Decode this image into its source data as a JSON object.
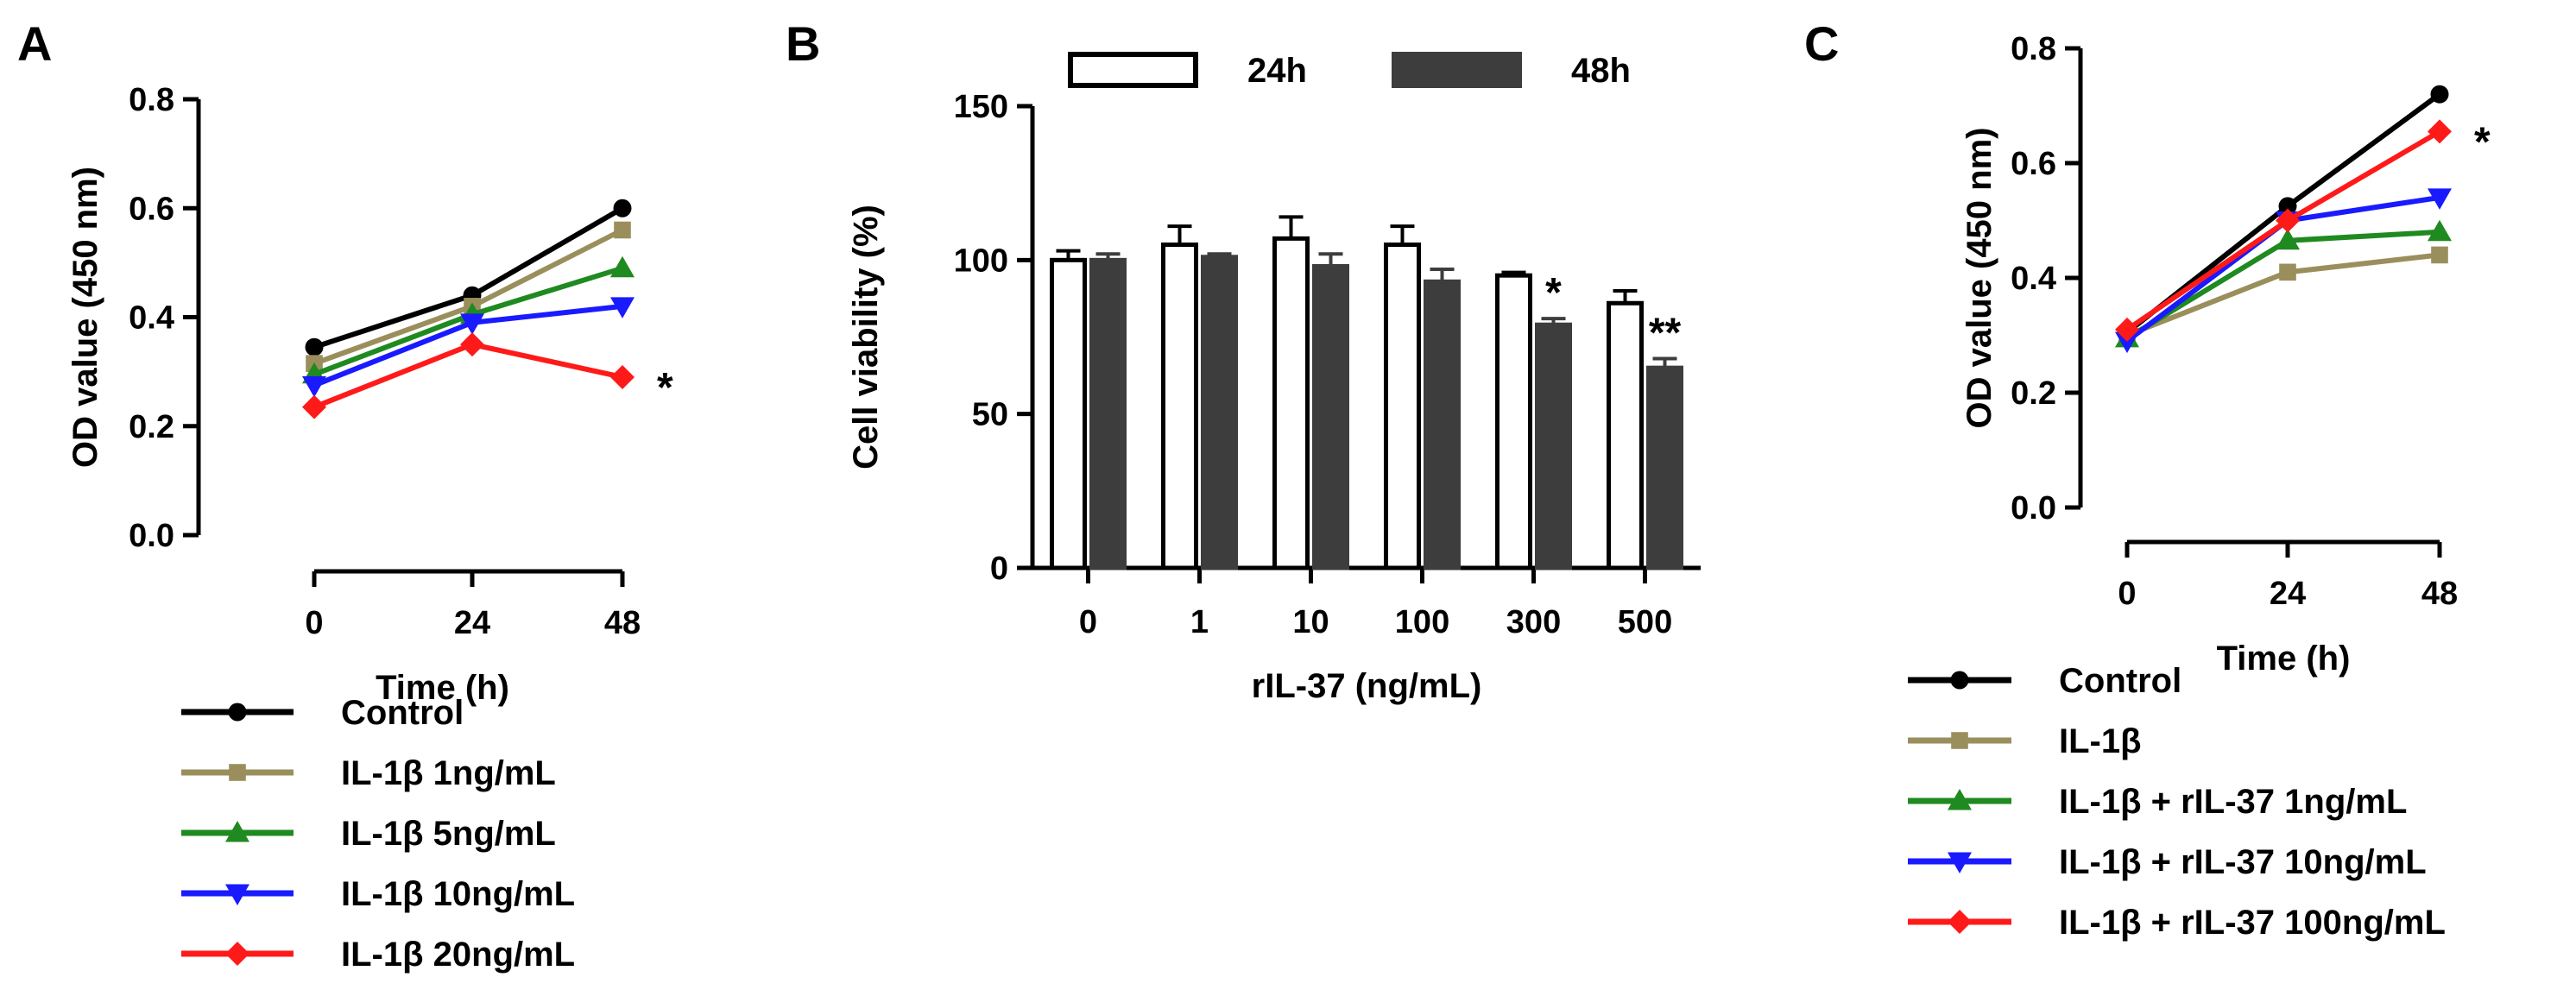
{
  "chart_data": [
    {
      "panel": "A",
      "type": "line",
      "x": [
        0,
        24,
        48
      ],
      "xticks": [
        "0",
        "24",
        "48"
      ],
      "xlabel": "Time (h)",
      "ylabel": "OD value (450 nm)",
      "ylim": [
        0,
        0.8
      ],
      "yticks": [
        "0.0",
        "0.2",
        "0.4",
        "0.6",
        "0.8"
      ],
      "series": [
        {
          "name": "Control",
          "values": [
            0.345,
            0.44,
            0.6
          ],
          "color": "#000000",
          "marker": "circle"
        },
        {
          "name": "IL-1β 1ng/mL",
          "values": [
            0.315,
            0.42,
            0.56
          ],
          "color": "#9a8f5c",
          "marker": "square"
        },
        {
          "name": "IL-1β 5ng/mL",
          "values": [
            0.295,
            0.405,
            0.49
          ],
          "color": "#1f8a1f",
          "marker": "triangle-up"
        },
        {
          "name": "IL-1β 10ng/mL",
          "values": [
            0.275,
            0.39,
            0.42
          ],
          "color": "#1a1aff",
          "marker": "triangle-down"
        },
        {
          "name": "IL-1β 20ng/mL",
          "values": [
            0.235,
            0.35,
            0.29
          ],
          "color": "#ff1a1a",
          "marker": "diamond"
        }
      ],
      "annotations": [
        {
          "text": "*",
          "series": 4,
          "x": 48
        }
      ]
    },
    {
      "panel": "B",
      "type": "bar",
      "categories": [
        "0",
        "1",
        "10",
        "100",
        "300",
        "500"
      ],
      "xlabel": "rIL-37 (ng/mL)",
      "ylabel": "Cell viability (%)",
      "ylim": [
        0,
        150
      ],
      "yticks": [
        "0",
        "50",
        "100",
        "150"
      ],
      "legend_position": "top",
      "series": [
        {
          "name": "24h",
          "values": [
            100,
            105,
            107,
            105,
            95,
            86
          ],
          "errors": [
            3,
            6,
            7,
            6,
            1,
            4
          ],
          "fill": "#ffffff",
          "stroke": "#000000"
        },
        {
          "name": "48h",
          "values": [
            100,
            101,
            98,
            93,
            79,
            65
          ],
          "errors": [
            2,
            1,
            4,
            4,
            2,
            3
          ],
          "fill": "#3d3d3d",
          "stroke": "#3d3d3d"
        }
      ],
      "annotations": [
        {
          "text": "*",
          "category": 4,
          "series": 1
        },
        {
          "text": "**",
          "category": 5,
          "series": 1
        }
      ]
    },
    {
      "panel": "C",
      "type": "line",
      "x": [
        0,
        24,
        48
      ],
      "xticks": [
        "0",
        "24",
        "48"
      ],
      "xlabel": "Time (h)",
      "ylabel": "OD value (450 nm)",
      "ylim": [
        0,
        0.8
      ],
      "yticks": [
        "0.0",
        "0.2",
        "0.4",
        "0.6",
        "0.8"
      ],
      "series": [
        {
          "name": "Control",
          "values": [
            0.305,
            0.525,
            0.72
          ],
          "color": "#000000",
          "marker": "circle"
        },
        {
          "name": "IL-1β",
          "values": [
            0.3,
            0.41,
            0.44
          ],
          "color": "#9a8f5c",
          "marker": "square"
        },
        {
          "name": "IL-1β + rIL-37 1ng/mL",
          "values": [
            0.295,
            0.465,
            0.48
          ],
          "color": "#1f8a1f",
          "marker": "triangle-up"
        },
        {
          "name": "IL-1β + rIL-37 10ng/mL",
          "values": [
            0.29,
            0.5,
            0.54
          ],
          "color": "#1a1aff",
          "marker": "triangle-down"
        },
        {
          "name": "IL-1β + rIL-37 100ng/mL",
          "values": [
            0.31,
            0.5,
            0.655
          ],
          "color": "#ff1a1a",
          "marker": "diamond"
        }
      ],
      "annotations": [
        {
          "text": "*",
          "series": 4,
          "x": 48
        }
      ]
    }
  ]
}
